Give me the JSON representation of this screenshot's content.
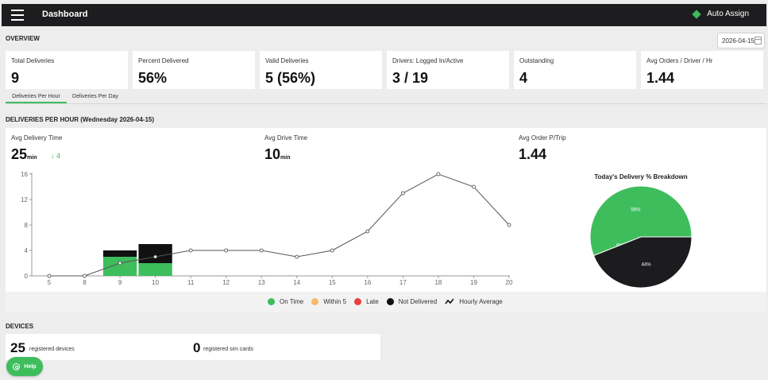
{
  "header": {
    "title": "Dashboard",
    "auto_assign_label": "Auto Assign"
  },
  "overview": {
    "title": "OVERVIEW",
    "date": "2026-04-15",
    "kpis": [
      {
        "label": "Total Deliveries",
        "value": "9"
      },
      {
        "label": "Percent Delivered",
        "value": "56%"
      },
      {
        "label": "Valid Deliveries",
        "value": "5 (56%)"
      },
      {
        "label": "Drivers: Logged In/Active",
        "value": "3 / 19"
      },
      {
        "label": "Outstanding",
        "value": "4"
      },
      {
        "label": "Avg Orders / Driver / Hr",
        "value": "1.44"
      }
    ]
  },
  "tabs": [
    {
      "label": "Deliveries Per Hour",
      "active": true
    },
    {
      "label": "Deliveries Per Day",
      "active": false
    }
  ],
  "per_hour": {
    "title": "DELIVERIES PER HOUR (Wednesday 2026-04-15)",
    "avg_delivery_time_label": "Avg Delivery Time",
    "avg_delivery_time_value": "25",
    "avg_delivery_time_unit": "min",
    "avg_delivery_delta": "4",
    "avg_drive_time_label": "Avg Drive Time",
    "avg_drive_time_value": "10",
    "avg_drive_time_unit": "min",
    "avg_order_trip_label": "Avg Order P/Trip",
    "avg_order_trip_value": "1.44"
  },
  "legend": [
    {
      "label": "On Time",
      "color": "#3ebd5d"
    },
    {
      "label": "Within 5",
      "color": "#f7b96a"
    },
    {
      "label": "Late",
      "color": "#e8403e"
    },
    {
      "label": "Not Delivered",
      "color": "#111111"
    },
    {
      "label": "Hourly Average",
      "icon": "trend-line-icon"
    }
  ],
  "chart_data": [
    {
      "type": "bar",
      "categories": [
        "5",
        "8",
        "9",
        "10",
        "11",
        "12",
        "13",
        "14",
        "15",
        "16",
        "17",
        "18",
        "19",
        "20"
      ],
      "ylim": [
        0,
        16
      ],
      "yticks": [
        0,
        4,
        8,
        12,
        16
      ],
      "series": [
        {
          "name": "On Time",
          "color": "#3ebd5d",
          "values": [
            0,
            0,
            3,
            2,
            0,
            0,
            0,
            0,
            0,
            0,
            0,
            0,
            0,
            0
          ]
        },
        {
          "name": "Within 5",
          "color": "#f7b96a",
          "values": [
            0,
            0,
            0,
            0,
            0,
            0,
            0,
            0,
            0,
            0,
            0,
            0,
            0,
            0
          ]
        },
        {
          "name": "Late",
          "color": "#e8403e",
          "values": [
            0,
            0,
            0,
            0,
            0,
            0,
            0,
            0,
            0,
            0,
            0,
            0,
            0,
            0
          ]
        },
        {
          "name": "Not Delivered",
          "color": "#111111",
          "values": [
            0,
            0,
            1,
            3,
            0,
            0,
            0,
            0,
            0,
            0,
            0,
            0,
            0,
            0
          ]
        }
      ],
      "line": {
        "name": "Hourly Average",
        "color": "#555555",
        "values": [
          0,
          0,
          2,
          3,
          4,
          4,
          4,
          3,
          4,
          7,
          13,
          16,
          14,
          8
        ]
      },
      "grid": false
    },
    {
      "type": "pie",
      "title": "Today's Delivery % Breakdown",
      "slices": [
        {
          "label": "56%",
          "value": 56,
          "color": "#3ebd5d"
        },
        {
          "label": "0%",
          "value": 0,
          "color": "#f7b96a"
        },
        {
          "label": "44%",
          "value": 44,
          "color": "#1c1c1e"
        }
      ]
    }
  ],
  "devices": {
    "title": "DEVICES",
    "registered_devices_count": "25",
    "registered_devices_label": "registered devices",
    "sim_cards_count": "0",
    "sim_cards_label": "registered sim cards"
  },
  "help_label": "Help"
}
